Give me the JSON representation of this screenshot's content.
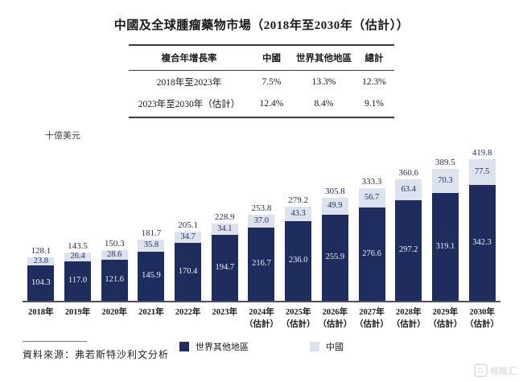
{
  "title": "中國及全球腫瘤藥物市場（2018年至2030年（估計））",
  "table": {
    "headers": [
      "複合年增長率",
      "中國",
      "世界其他地區",
      "總計"
    ],
    "rows": [
      [
        "2018年至2023年",
        "7.5%",
        "13.3%",
        "12.3%"
      ],
      [
        "2023年至2030年（估計）",
        "12.4%",
        "8.4%",
        "9.1%"
      ]
    ]
  },
  "chart_data": {
    "type": "bar",
    "stacked": true,
    "title": "中國及全球腫瘤藥物市場（2018年至2030年（估計））",
    "ylabel": "十億美元",
    "xlabel": "",
    "ylim": [
      0,
      440
    ],
    "grid": false,
    "legend_position": "bottom",
    "categories": [
      {
        "label": "2018年",
        "note": ""
      },
      {
        "label": "2019年",
        "note": ""
      },
      {
        "label": "2020年",
        "note": ""
      },
      {
        "label": "2021年",
        "note": ""
      },
      {
        "label": "2022年",
        "note": ""
      },
      {
        "label": "2023年",
        "note": ""
      },
      {
        "label": "2024年",
        "note": "（估計）"
      },
      {
        "label": "2025年",
        "note": "（估計）"
      },
      {
        "label": "2026年",
        "note": "（估計）"
      },
      {
        "label": "2027年",
        "note": "（估計）"
      },
      {
        "label": "2028年",
        "note": "（估計）"
      },
      {
        "label": "2029年",
        "note": "（估計）"
      },
      {
        "label": "2030年",
        "note": "（估計）"
      }
    ],
    "series": [
      {
        "name": "世界其他地區",
        "color": "#1f2c5e",
        "values": [
          104.3,
          117.0,
          121.6,
          145.9,
          170.4,
          194.7,
          216.7,
          236.0,
          255.9,
          276.6,
          297.2,
          319.1,
          342.3
        ]
      },
      {
        "name": "中國",
        "color": "#dde3ee",
        "values": [
          23.8,
          26.4,
          28.6,
          35.8,
          34.7,
          34.1,
          37.0,
          43.3,
          49.9,
          56.7,
          63.4,
          70.3,
          77.5
        ]
      }
    ],
    "totals": [
      128.1,
      143.5,
      150.3,
      181.7,
      205.1,
      228.9,
      253.8,
      279.2,
      305.8,
      333.3,
      360.6,
      389.5,
      419.8
    ]
  },
  "source": "資料來源：弗若斯特沙利文分析",
  "watermark": {
    "logo": "G",
    "text": "格隆汇"
  },
  "colors": {
    "dark_series": "#1f2c5e",
    "light_series": "#dde3ee",
    "value_label": "#1f2c5e"
  }
}
